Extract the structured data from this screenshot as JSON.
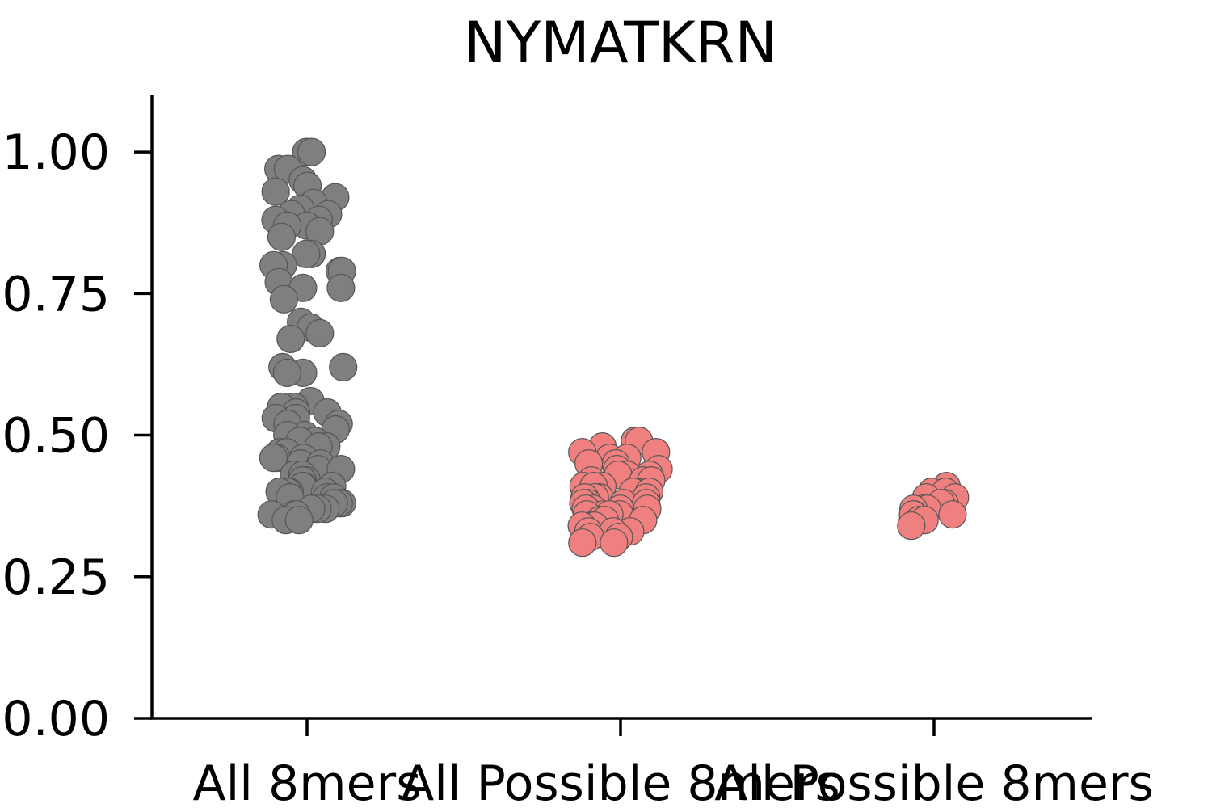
{
  "chart_data": {
    "type": "scatter",
    "title": "NYMATKRN",
    "xlabel": "",
    "ylabel": "",
    "ylim": [
      0,
      1.1
    ],
    "yticks": [
      "0.00",
      "0.25",
      "0.50",
      "0.75",
      "1.00"
    ],
    "grid": false,
    "categories": [
      "All 8mers",
      "All Possible 8mers",
      "All Possible 8mers"
    ],
    "series": [
      {
        "color": "#7f7f7f",
        "category_index": 0,
        "values": [
          1.0,
          1.0,
          0.97,
          0.97,
          0.95,
          0.94,
          0.93,
          0.92,
          0.91,
          0.9,
          0.89,
          0.89,
          0.88,
          0.88,
          0.87,
          0.87,
          0.86,
          0.85,
          0.82,
          0.82,
          0.8,
          0.8,
          0.79,
          0.79,
          0.77,
          0.76,
          0.76,
          0.74,
          0.7,
          0.69,
          0.68,
          0.67,
          0.62,
          0.62,
          0.61,
          0.61,
          0.56,
          0.55,
          0.55,
          0.54,
          0.54,
          0.53,
          0.53,
          0.52,
          0.52,
          0.51,
          0.5,
          0.5,
          0.49,
          0.49,
          0.48,
          0.48,
          0.47,
          0.47,
          0.46,
          0.46,
          0.46,
          0.45,
          0.45,
          0.44,
          0.44,
          0.43,
          0.43,
          0.42,
          0.42,
          0.41,
          0.41,
          0.41,
          0.4,
          0.4,
          0.4,
          0.4,
          0.39,
          0.39,
          0.39,
          0.38,
          0.38,
          0.38,
          0.37,
          0.37,
          0.37,
          0.36,
          0.36,
          0.36,
          0.35,
          0.35
        ]
      },
      {
        "color": "#f08080",
        "category_index": 1,
        "values": [
          0.49,
          0.49,
          0.48,
          0.47,
          0.47,
          0.46,
          0.46,
          0.45,
          0.45,
          0.44,
          0.44,
          0.43,
          0.43,
          0.43,
          0.42,
          0.42,
          0.42,
          0.41,
          0.41,
          0.41,
          0.4,
          0.4,
          0.4,
          0.4,
          0.39,
          0.39,
          0.39,
          0.39,
          0.38,
          0.38,
          0.38,
          0.38,
          0.37,
          0.37,
          0.37,
          0.37,
          0.36,
          0.36,
          0.36,
          0.36,
          0.35,
          0.35,
          0.35,
          0.34,
          0.34,
          0.34,
          0.33,
          0.33,
          0.33,
          0.32,
          0.32,
          0.31,
          0.31
        ]
      },
      {
        "color": "#f08080",
        "category_index": 2,
        "values": [
          0.41,
          0.4,
          0.4,
          0.39,
          0.39,
          0.38,
          0.38,
          0.37,
          0.37,
          0.37,
          0.36,
          0.36,
          0.36,
          0.35,
          0.35,
          0.34
        ]
      }
    ]
  }
}
